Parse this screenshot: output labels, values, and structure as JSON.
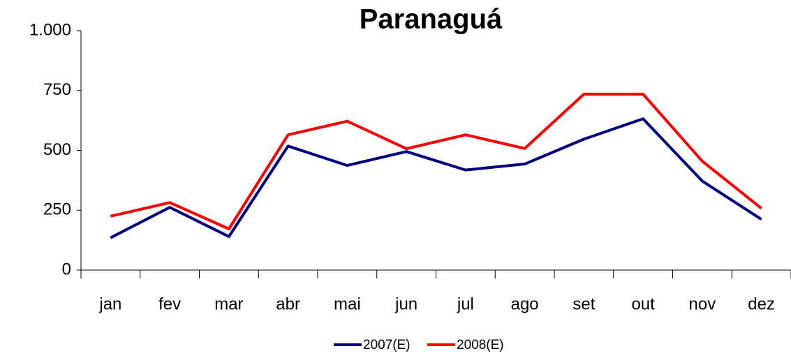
{
  "chart_data": {
    "type": "line",
    "title": "Paranaguá",
    "categories": [
      "jan",
      "fev",
      "mar",
      "abr",
      "mai",
      "jun",
      "jul",
      "ago",
      "set",
      "out",
      "nov",
      "dez"
    ],
    "series": [
      {
        "name": "2007(E)",
        "color": "#000080",
        "values": [
          135,
          262,
          140,
          518,
          437,
          495,
          418,
          443,
          547,
          632,
          372,
          212
        ]
      },
      {
        "name": "2008(E)",
        "color": "#ff0000",
        "values": [
          225,
          282,
          172,
          565,
          622,
          507,
          565,
          508,
          735,
          735,
          455,
          258
        ]
      }
    ],
    "ylim": [
      0,
      1000
    ],
    "yticks": [
      0,
      250,
      500,
      750,
      {
        "value": 1000,
        "label": "1.000"
      }
    ],
    "grid": false,
    "legend": "bottom"
  }
}
